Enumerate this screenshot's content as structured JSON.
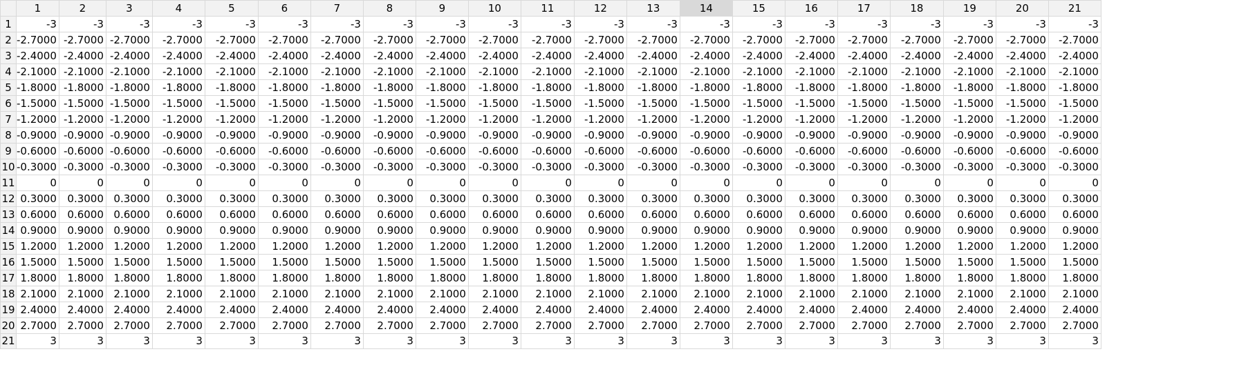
{
  "grid": {
    "columns": [
      "1",
      "2",
      "3",
      "4",
      "5",
      "6",
      "7",
      "8",
      "9",
      "10",
      "11",
      "12",
      "13",
      "14",
      "15",
      "16",
      "17",
      "18",
      "19",
      "20",
      "21"
    ],
    "selected_column": "14",
    "rows": [
      {
        "label": "1",
        "cells": [
          "-3",
          "-3",
          "-3",
          "-3",
          "-3",
          "-3",
          "-3",
          "-3",
          "-3",
          "-3",
          "-3",
          "-3",
          "-3",
          "-3",
          "-3",
          "-3",
          "-3",
          "-3",
          "-3",
          "-3",
          "-3"
        ]
      },
      {
        "label": "2",
        "cells": [
          "-2.7000",
          "-2.7000",
          "-2.7000",
          "-2.7000",
          "-2.7000",
          "-2.7000",
          "-2.7000",
          "-2.7000",
          "-2.7000",
          "-2.7000",
          "-2.7000",
          "-2.7000",
          "-2.7000",
          "-2.7000",
          "-2.7000",
          "-2.7000",
          "-2.7000",
          "-2.7000",
          "-2.7000",
          "-2.7000",
          "-2.7000"
        ]
      },
      {
        "label": "3",
        "cells": [
          "-2.4000",
          "-2.4000",
          "-2.4000",
          "-2.4000",
          "-2.4000",
          "-2.4000",
          "-2.4000",
          "-2.4000",
          "-2.4000",
          "-2.4000",
          "-2.4000",
          "-2.4000",
          "-2.4000",
          "-2.4000",
          "-2.4000",
          "-2.4000",
          "-2.4000",
          "-2.4000",
          "-2.4000",
          "-2.4000",
          "-2.4000"
        ]
      },
      {
        "label": "4",
        "cells": [
          "-2.1000",
          "-2.1000",
          "-2.1000",
          "-2.1000",
          "-2.1000",
          "-2.1000",
          "-2.1000",
          "-2.1000",
          "-2.1000",
          "-2.1000",
          "-2.1000",
          "-2.1000",
          "-2.1000",
          "-2.1000",
          "-2.1000",
          "-2.1000",
          "-2.1000",
          "-2.1000",
          "-2.1000",
          "-2.1000",
          "-2.1000"
        ]
      },
      {
        "label": "5",
        "cells": [
          "-1.8000",
          "-1.8000",
          "-1.8000",
          "-1.8000",
          "-1.8000",
          "-1.8000",
          "-1.8000",
          "-1.8000",
          "-1.8000",
          "-1.8000",
          "-1.8000",
          "-1.8000",
          "-1.8000",
          "-1.8000",
          "-1.8000",
          "-1.8000",
          "-1.8000",
          "-1.8000",
          "-1.8000",
          "-1.8000",
          "-1.8000"
        ]
      },
      {
        "label": "6",
        "cells": [
          "-1.5000",
          "-1.5000",
          "-1.5000",
          "-1.5000",
          "-1.5000",
          "-1.5000",
          "-1.5000",
          "-1.5000",
          "-1.5000",
          "-1.5000",
          "-1.5000",
          "-1.5000",
          "-1.5000",
          "-1.5000",
          "-1.5000",
          "-1.5000",
          "-1.5000",
          "-1.5000",
          "-1.5000",
          "-1.5000",
          "-1.5000"
        ]
      },
      {
        "label": "7",
        "cells": [
          "-1.2000",
          "-1.2000",
          "-1.2000",
          "-1.2000",
          "-1.2000",
          "-1.2000",
          "-1.2000",
          "-1.2000",
          "-1.2000",
          "-1.2000",
          "-1.2000",
          "-1.2000",
          "-1.2000",
          "-1.2000",
          "-1.2000",
          "-1.2000",
          "-1.2000",
          "-1.2000",
          "-1.2000",
          "-1.2000",
          "-1.2000"
        ]
      },
      {
        "label": "8",
        "cells": [
          "-0.9000",
          "-0.9000",
          "-0.9000",
          "-0.9000",
          "-0.9000",
          "-0.9000",
          "-0.9000",
          "-0.9000",
          "-0.9000",
          "-0.9000",
          "-0.9000",
          "-0.9000",
          "-0.9000",
          "-0.9000",
          "-0.9000",
          "-0.9000",
          "-0.9000",
          "-0.9000",
          "-0.9000",
          "-0.9000",
          "-0.9000"
        ]
      },
      {
        "label": "9",
        "cells": [
          "-0.6000",
          "-0.6000",
          "-0.6000",
          "-0.6000",
          "-0.6000",
          "-0.6000",
          "-0.6000",
          "-0.6000",
          "-0.6000",
          "-0.6000",
          "-0.6000",
          "-0.6000",
          "-0.6000",
          "-0.6000",
          "-0.6000",
          "-0.6000",
          "-0.6000",
          "-0.6000",
          "-0.6000",
          "-0.6000",
          "-0.6000"
        ]
      },
      {
        "label": "10",
        "cells": [
          "-0.3000",
          "-0.3000",
          "-0.3000",
          "-0.3000",
          "-0.3000",
          "-0.3000",
          "-0.3000",
          "-0.3000",
          "-0.3000",
          "-0.3000",
          "-0.3000",
          "-0.3000",
          "-0.3000",
          "-0.3000",
          "-0.3000",
          "-0.3000",
          "-0.3000",
          "-0.3000",
          "-0.3000",
          "-0.3000",
          "-0.3000"
        ]
      },
      {
        "label": "11",
        "cells": [
          "0",
          "0",
          "0",
          "0",
          "0",
          "0",
          "0",
          "0",
          "0",
          "0",
          "0",
          "0",
          "0",
          "0",
          "0",
          "0",
          "0",
          "0",
          "0",
          "0",
          "0"
        ]
      },
      {
        "label": "12",
        "cells": [
          "0.3000",
          "0.3000",
          "0.3000",
          "0.3000",
          "0.3000",
          "0.3000",
          "0.3000",
          "0.3000",
          "0.3000",
          "0.3000",
          "0.3000",
          "0.3000",
          "0.3000",
          "0.3000",
          "0.3000",
          "0.3000",
          "0.3000",
          "0.3000",
          "0.3000",
          "0.3000",
          "0.3000"
        ]
      },
      {
        "label": "13",
        "cells": [
          "0.6000",
          "0.6000",
          "0.6000",
          "0.6000",
          "0.6000",
          "0.6000",
          "0.6000",
          "0.6000",
          "0.6000",
          "0.6000",
          "0.6000",
          "0.6000",
          "0.6000",
          "0.6000",
          "0.6000",
          "0.6000",
          "0.6000",
          "0.6000",
          "0.6000",
          "0.6000",
          "0.6000"
        ]
      },
      {
        "label": "14",
        "cells": [
          "0.9000",
          "0.9000",
          "0.9000",
          "0.9000",
          "0.9000",
          "0.9000",
          "0.9000",
          "0.9000",
          "0.9000",
          "0.9000",
          "0.9000",
          "0.9000",
          "0.9000",
          "0.9000",
          "0.9000",
          "0.9000",
          "0.9000",
          "0.9000",
          "0.9000",
          "0.9000",
          "0.9000"
        ]
      },
      {
        "label": "15",
        "cells": [
          "1.2000",
          "1.2000",
          "1.2000",
          "1.2000",
          "1.2000",
          "1.2000",
          "1.2000",
          "1.2000",
          "1.2000",
          "1.2000",
          "1.2000",
          "1.2000",
          "1.2000",
          "1.2000",
          "1.2000",
          "1.2000",
          "1.2000",
          "1.2000",
          "1.2000",
          "1.2000",
          "1.2000"
        ]
      },
      {
        "label": "16",
        "cells": [
          "1.5000",
          "1.5000",
          "1.5000",
          "1.5000",
          "1.5000",
          "1.5000",
          "1.5000",
          "1.5000",
          "1.5000",
          "1.5000",
          "1.5000",
          "1.5000",
          "1.5000",
          "1.5000",
          "1.5000",
          "1.5000",
          "1.5000",
          "1.5000",
          "1.5000",
          "1.5000",
          "1.5000"
        ]
      },
      {
        "label": "17",
        "cells": [
          "1.8000",
          "1.8000",
          "1.8000",
          "1.8000",
          "1.8000",
          "1.8000",
          "1.8000",
          "1.8000",
          "1.8000",
          "1.8000",
          "1.8000",
          "1.8000",
          "1.8000",
          "1.8000",
          "1.8000",
          "1.8000",
          "1.8000",
          "1.8000",
          "1.8000",
          "1.8000",
          "1.8000"
        ]
      },
      {
        "label": "18",
        "cells": [
          "2.1000",
          "2.1000",
          "2.1000",
          "2.1000",
          "2.1000",
          "2.1000",
          "2.1000",
          "2.1000",
          "2.1000",
          "2.1000",
          "2.1000",
          "2.1000",
          "2.1000",
          "2.1000",
          "2.1000",
          "2.1000",
          "2.1000",
          "2.1000",
          "2.1000",
          "2.1000",
          "2.1000"
        ]
      },
      {
        "label": "19",
        "cells": [
          "2.4000",
          "2.4000",
          "2.4000",
          "2.4000",
          "2.4000",
          "2.4000",
          "2.4000",
          "2.4000",
          "2.4000",
          "2.4000",
          "2.4000",
          "2.4000",
          "2.4000",
          "2.4000",
          "2.4000",
          "2.4000",
          "2.4000",
          "2.4000",
          "2.4000",
          "2.4000",
          "2.4000"
        ]
      },
      {
        "label": "20",
        "cells": [
          "2.7000",
          "2.7000",
          "2.7000",
          "2.7000",
          "2.7000",
          "2.7000",
          "2.7000",
          "2.7000",
          "2.7000",
          "2.7000",
          "2.7000",
          "2.7000",
          "2.7000",
          "2.7000",
          "2.7000",
          "2.7000",
          "2.7000",
          "2.7000",
          "2.7000",
          "2.7000",
          "2.7000"
        ]
      },
      {
        "label": "21",
        "cells": [
          "3",
          "3",
          "3",
          "3",
          "3",
          "3",
          "3",
          "3",
          "3",
          "3",
          "3",
          "3",
          "3",
          "3",
          "3",
          "3",
          "3",
          "3",
          "3",
          "3",
          "3"
        ]
      }
    ]
  },
  "colors": {
    "header_bg": "#f2f2f2",
    "selected_header_bg": "#d9d9d9",
    "gridline": "#d9d9d9"
  }
}
